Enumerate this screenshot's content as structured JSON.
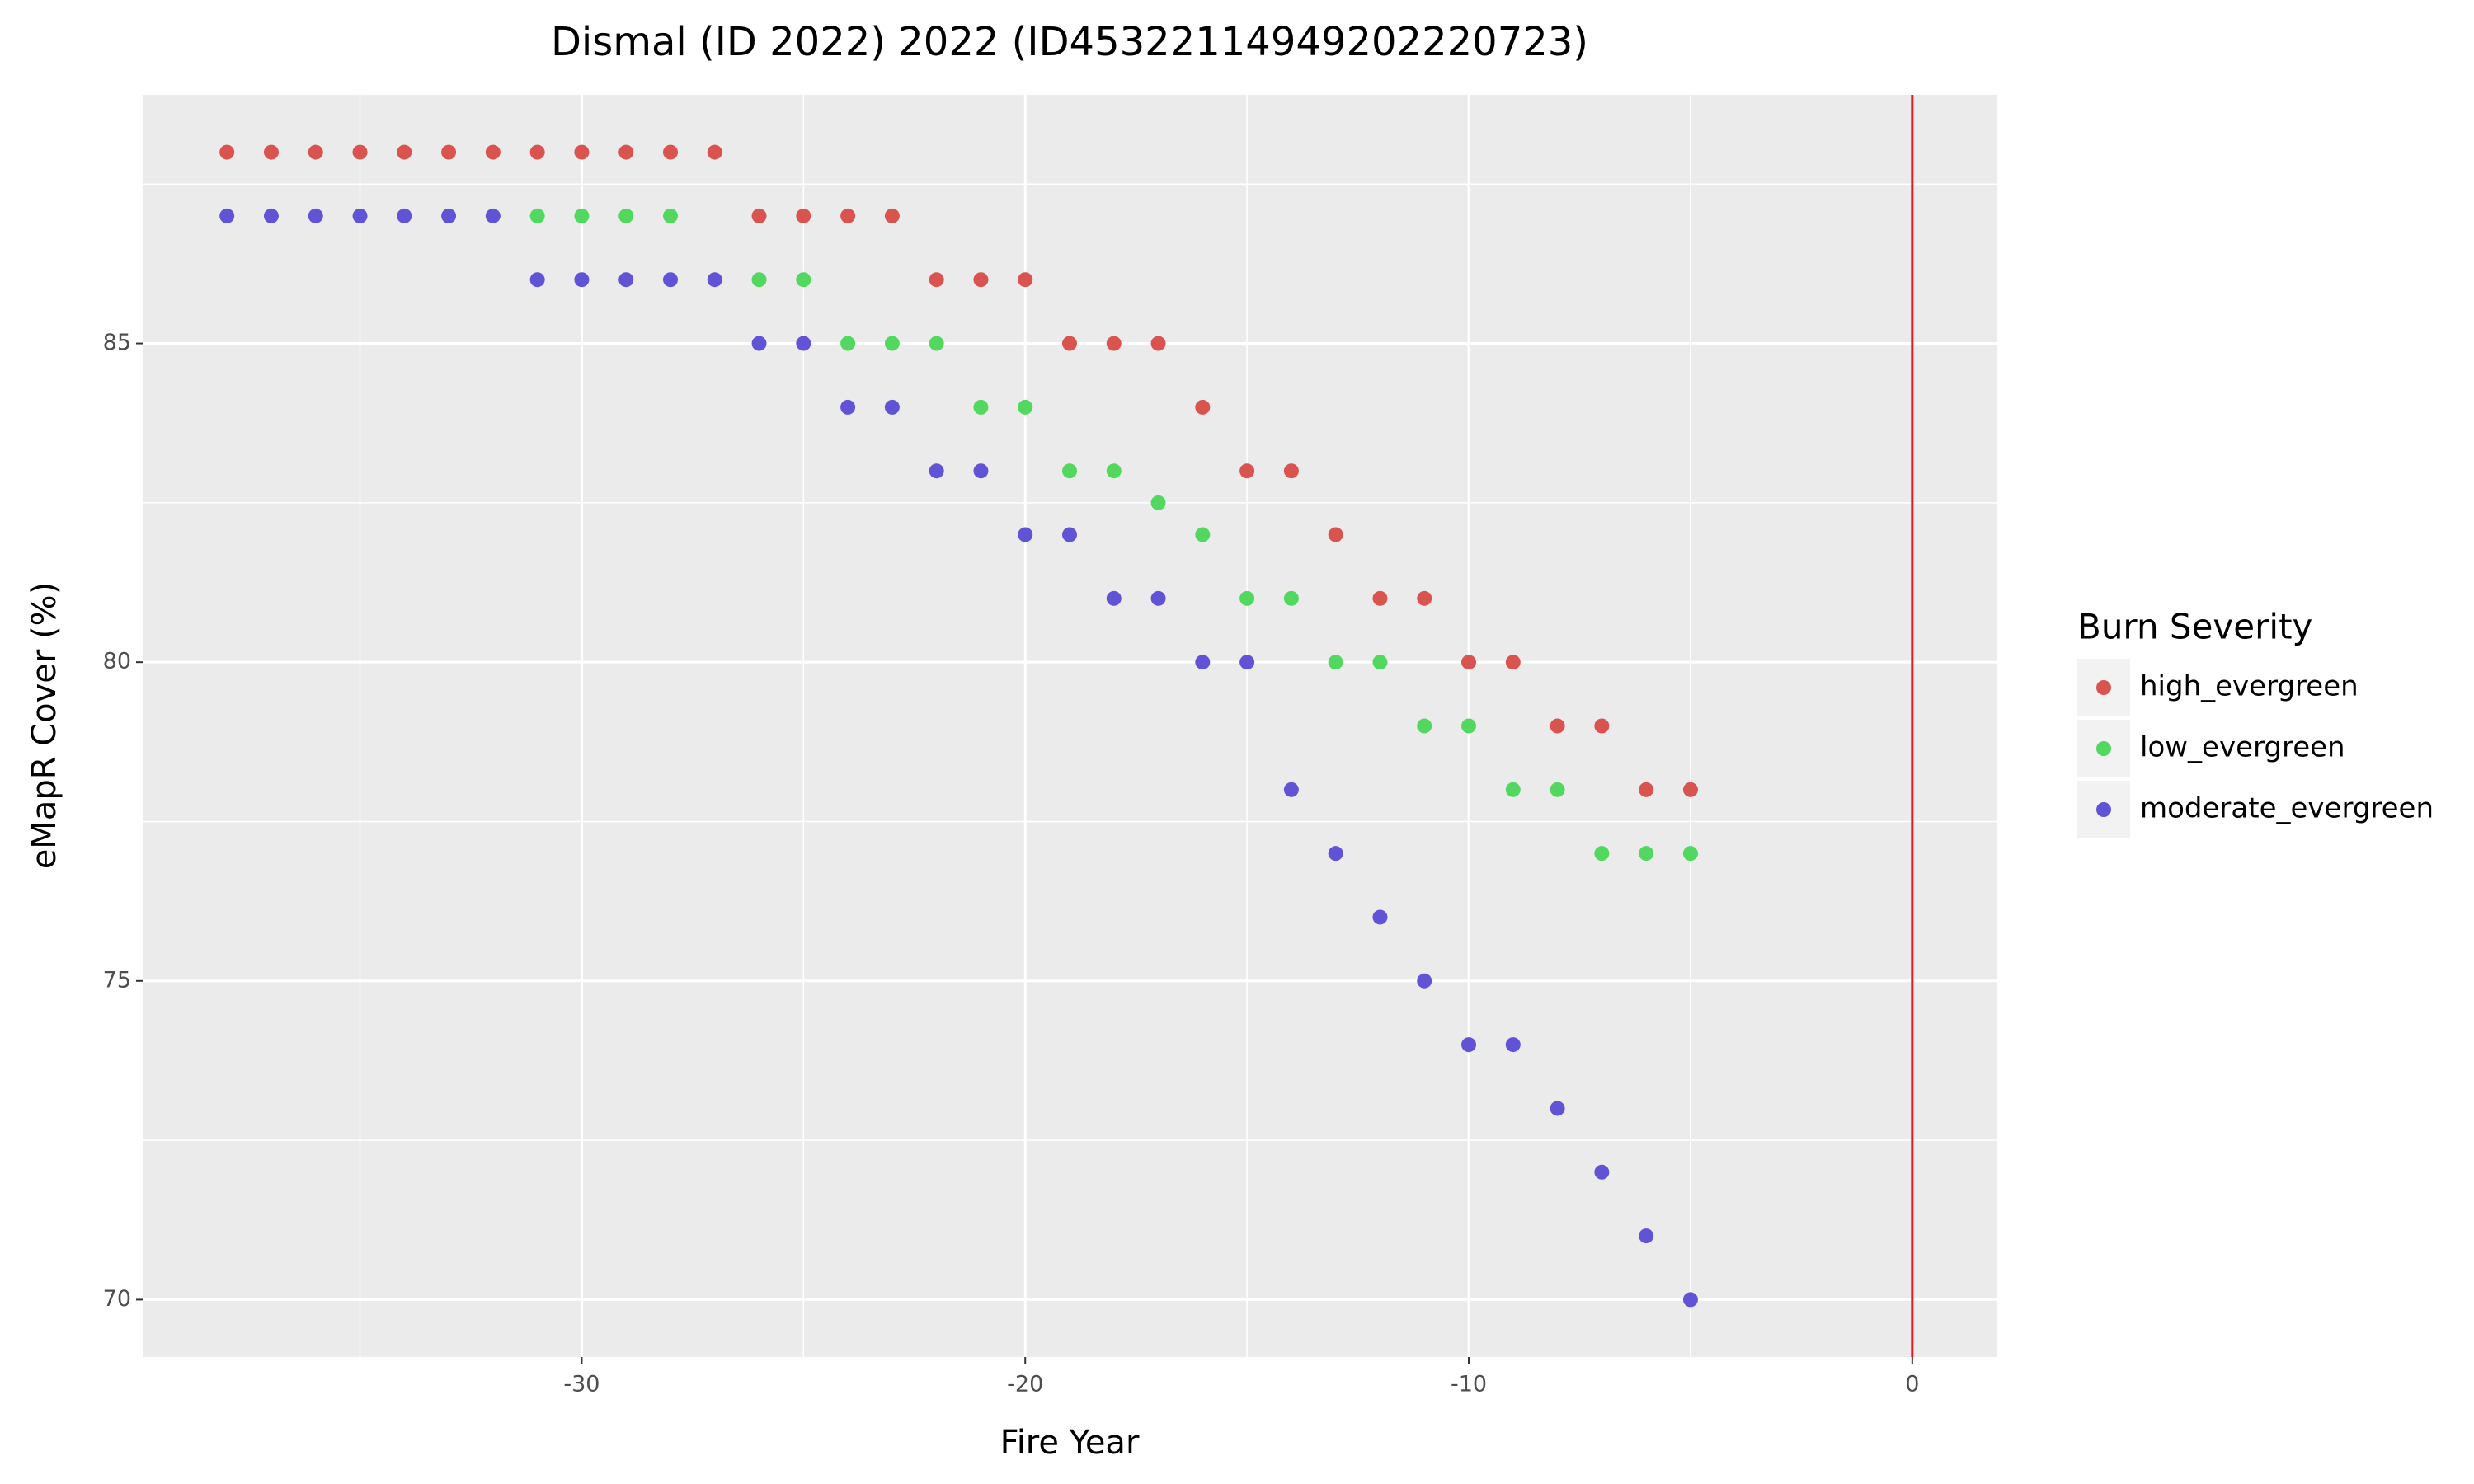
{
  "chart_data": {
    "type": "scatter",
    "title": "Dismal (ID 2022) 2022 (ID45322114949202220723)",
    "x_label": "Fire Year",
    "y_label": "eMapR Cover (%)",
    "legend_title": "Burn Severity",
    "legend_position": "right",
    "xlim": [
      -39.9,
      1.9
    ],
    "xticks": [
      -30,
      -20,
      -10,
      0
    ],
    "ylim": [
      69.1,
      88.9
    ],
    "yticks": [
      70,
      75,
      80,
      85
    ],
    "grid": true,
    "vline": 0,
    "vline_color": "#e41a1c",
    "series": [
      {
        "name": "high_evergreen",
        "color": "#d9534f",
        "x": [
          -38,
          -37,
          -36,
          -35,
          -34,
          -33,
          -32,
          -31,
          -30,
          -29,
          -28,
          -27,
          -26,
          -25,
          -24,
          -23,
          -22,
          -21,
          -20,
          -19,
          -18,
          -17,
          -16,
          -15,
          -14,
          -13,
          -12,
          -11,
          -10,
          -9,
          -8,
          -7,
          -6,
          -5
        ],
        "values": [
          88,
          88,
          88,
          88,
          88,
          88,
          88,
          88,
          88,
          88,
          88,
          88,
          87,
          87,
          87,
          87,
          86,
          86,
          86,
          85,
          85,
          85,
          84,
          83,
          83,
          82,
          81,
          81,
          80,
          80,
          79,
          79,
          78,
          78
        ]
      },
      {
        "name": "low_evergreen",
        "color": "#52d85e",
        "x": [
          -31,
          -30,
          -29,
          -28,
          -26,
          -25,
          -24,
          -23,
          -22,
          -21,
          -20,
          -19,
          -18,
          -17,
          -16,
          -15,
          -14,
          -13,
          -12,
          -11,
          -10,
          -9,
          -8,
          -7,
          -6,
          -5
        ],
        "values": [
          87,
          87,
          87,
          87,
          86,
          86,
          85,
          85,
          85,
          84,
          84,
          83,
          83,
          82.5,
          82,
          81,
          81,
          80,
          80,
          79,
          79,
          78,
          78,
          77,
          77,
          77
        ]
      },
      {
        "name": "moderate_evergreen",
        "color": "#6153d6",
        "x": [
          -38,
          -37,
          -36,
          -35,
          -34,
          -33,
          -32,
          -31,
          -30,
          -29,
          -28,
          -27,
          -26,
          -25,
          -24,
          -23,
          -22,
          -21,
          -20,
          -19,
          -18,
          -17,
          -16,
          -15,
          -14,
          -13,
          -12,
          -11,
          -10,
          -9,
          -8,
          -7,
          -6,
          -5
        ],
        "values": [
          87,
          87,
          87,
          87,
          87,
          87,
          87,
          86,
          86,
          86,
          86,
          86,
          85,
          85,
          84,
          84,
          83,
          83,
          82,
          82,
          81,
          81,
          80,
          80,
          78,
          77,
          76,
          75,
          74,
          74,
          73,
          72,
          71,
          70
        ]
      }
    ]
  }
}
